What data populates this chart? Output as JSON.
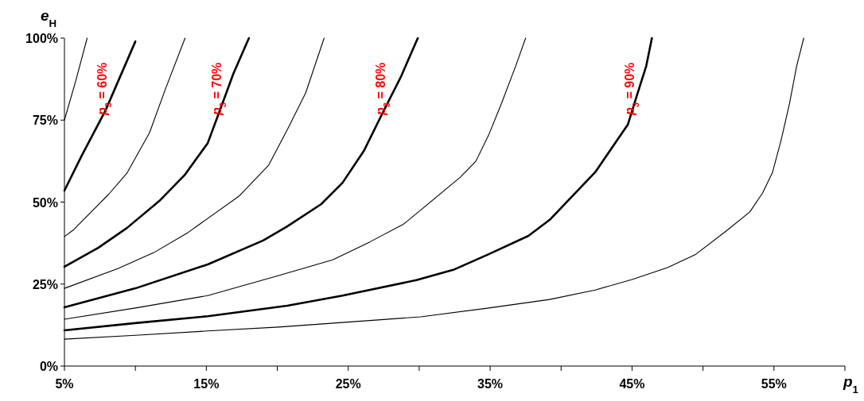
{
  "chart_data": {
    "type": "line",
    "xlabel": "p$_{1}$",
    "ylabel": "e$_{H}$",
    "xlim": [
      5,
      60
    ],
    "ylim": [
      0,
      100
    ],
    "xticks": [
      {
        "value": 5,
        "label": "5%"
      },
      {
        "value": 10,
        "label": null
      },
      {
        "value": 15,
        "label": "15%"
      },
      {
        "value": 20,
        "label": null
      },
      {
        "value": 25,
        "label": "25%"
      },
      {
        "value": 30,
        "label": null
      },
      {
        "value": 35,
        "label": "35%"
      },
      {
        "value": 40,
        "label": null
      },
      {
        "value": 45,
        "label": "45%"
      },
      {
        "value": 50,
        "label": null
      },
      {
        "value": 55,
        "label": "55%"
      },
      {
        "value": 60,
        "label": null
      }
    ],
    "yticks": [
      {
        "value": 0,
        "label": "0%"
      },
      {
        "value": 25,
        "label": "25%"
      },
      {
        "value": 50,
        "label": "50%"
      },
      {
        "value": 75,
        "label": "75%"
      },
      {
        "value": 100,
        "label": "100%"
      }
    ],
    "grid": false,
    "marker": "none",
    "line_style": "solid",
    "series": [
      {
        "color": "#000000",
        "x": [
          5,
          5.8,
          6.6
        ],
        "values": [
          75,
          87,
          100
        ]
      },
      {
        "name": "p$_{3}$ = 60%",
        "color": "#000000",
        "x": [
          5,
          6.2,
          7.9,
          10
        ],
        "values": [
          53.5,
          64,
          78,
          99
        ]
      },
      {
        "color": "#000000",
        "x": [
          5,
          5.6,
          8.1,
          9.4,
          11,
          12.1,
          13.5
        ],
        "values": [
          39.5,
          41.4,
          52.3,
          58.8,
          71.2,
          84.3,
          100
        ]
      },
      {
        "name": "p$_{3}$ = 70%",
        "color": "#000000",
        "x": [
          5,
          7.4,
          9.4,
          11.7,
          13.5,
          15.1,
          16,
          16.9,
          18
        ],
        "values": [
          30.3,
          36.1,
          42.1,
          50.4,
          58.4,
          68,
          78.5,
          89.1,
          100
        ]
      },
      {
        "color": "#000000",
        "x": [
          5,
          8.8,
          11.3,
          13.7,
          17.3,
          19.4,
          20.8,
          22,
          23.3
        ],
        "values": [
          23.7,
          29.8,
          34.6,
          40.7,
          51.8,
          61.3,
          72.9,
          83.3,
          100
        ]
      },
      {
        "name": "p$_{3}$ = 80%",
        "color": "#000000",
        "x": [
          5,
          10,
          15.1,
          19,
          20.7,
          23.1,
          24.6,
          26.1,
          27.4,
          28.7,
          29.9
        ],
        "values": [
          17.9,
          23.7,
          31,
          38.3,
          42.6,
          49.4,
          55.9,
          65.6,
          77,
          88.1,
          100
        ]
      },
      {
        "color": "#000000",
        "x": [
          5,
          10,
          15.1,
          20,
          23.9,
          26.5,
          28.9,
          30.2,
          32.9,
          34,
          34.9,
          35.8,
          36.8,
          37.5
        ],
        "values": [
          14.3,
          17.7,
          21.5,
          27.5,
          32.4,
          37.8,
          43.3,
          47.9,
          57.6,
          62.5,
          70.5,
          80.1,
          91.5,
          100
        ]
      },
      {
        "name": "p$_{3}$ = 90%",
        "color": "#000000",
        "x": [
          5,
          10,
          15.1,
          20.7,
          24.6,
          29.8,
          32.5,
          34.9,
          37.7,
          39.2,
          42.4,
          43.7,
          44.7,
          45.4,
          46,
          46.4
        ],
        "values": [
          10.9,
          13.1,
          15.2,
          18.4,
          21.5,
          26.2,
          29.5,
          34.1,
          39.7,
          44.6,
          59.1,
          67.3,
          73.6,
          83.3,
          91.5,
          100
        ]
      },
      {
        "color": "#000000",
        "x": [
          5,
          10,
          15.1,
          20.1,
          30.1,
          34.9,
          39.2,
          42.4,
          45,
          47.5,
          49.5,
          51.7,
          53.3,
          54.2,
          54.9,
          55.5,
          56.1,
          56.6,
          57.1
        ],
        "values": [
          8.2,
          9.4,
          10.7,
          11.9,
          15,
          17.7,
          20.3,
          23.2,
          26.4,
          30,
          34.1,
          41.4,
          47,
          52.8,
          59.1,
          68.8,
          80.1,
          91.5,
          100
        ]
      }
    ]
  }
}
